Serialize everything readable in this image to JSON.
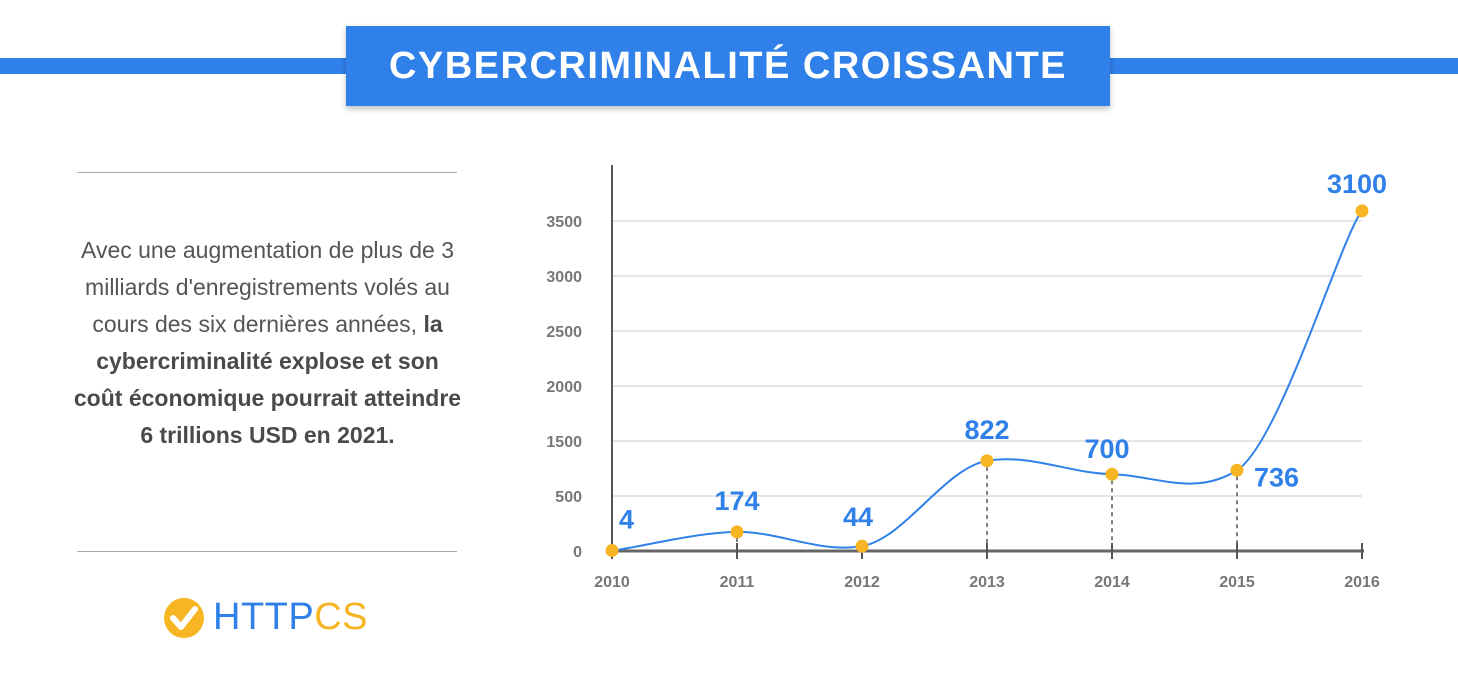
{
  "header": {
    "title": "CYBERCRIMINALITÉ CROISSANTE",
    "accent": "#2f80e8"
  },
  "description": {
    "regular": "Avec une augmentation de plus de 3 milliards d'enregistrements volés au cours des six dernières années, ",
    "bold": "la cybercriminalité explose et son coût économique pourrait atteindre 6 trillions USD en 2021."
  },
  "logo": {
    "part1": "HTTP",
    "part2": "CS",
    "icon": "check-circle-icon",
    "colors": {
      "blue": "#2f80e8",
      "yellow": "#f7b523"
    }
  },
  "chart_data": {
    "type": "line",
    "title": "",
    "xlabel": "",
    "ylabel": "",
    "x": [
      "2010",
      "2011",
      "2012",
      "2013",
      "2014",
      "2015",
      "2016"
    ],
    "values": [
      4,
      174,
      44,
      822,
      700,
      736,
      3100
    ],
    "data_labels": [
      "4",
      "174",
      "44",
      "822",
      "700",
      "736",
      "3100"
    ],
    "y_tick_labels": [
      "0",
      "500",
      "1500",
      "2000",
      "2500",
      "3000",
      "3500"
    ],
    "grid": true,
    "smooth": true,
    "line_color": "#2f80e8",
    "marker_color": "#f7b523",
    "label_color": "#2f80e8"
  }
}
